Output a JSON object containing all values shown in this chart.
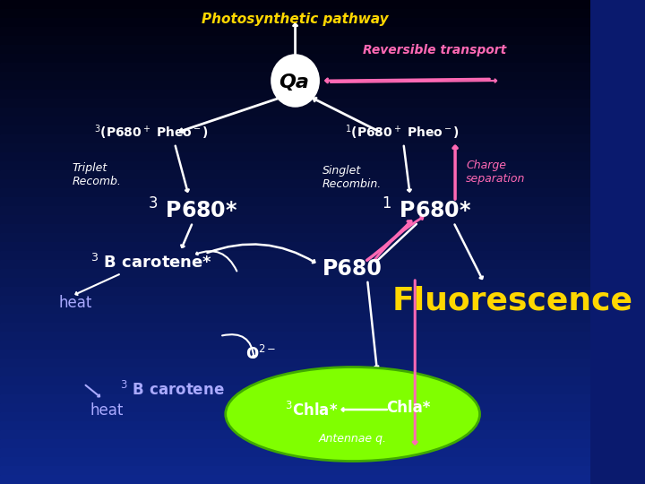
{
  "bg_color": "#0a1a6e",
  "title": "Photosynthetic pathway",
  "title_color": "#FFD700",
  "title_fontsize": 11,
  "reversible_transport": "Reversible transport",
  "rt_color": "#FF69B4",
  "qa_label": "Qa",
  "fluorescence": "Fluorescence",
  "fluor_color": "#FFD700",
  "fluor_fontsize": 26,
  "ellipse_green_color": "#80FF00",
  "ellipse_dark_green": "#50CC00",
  "antennae_label": "Antennae q.",
  "white": "#FFFFFF",
  "pink": "#FF69B4",
  "lavender": "#AAAAFF",
  "heat_color": "#AAAAFF",
  "bg_gradient_top": "#000010",
  "bg_gradient_bot": "#1a3a9e"
}
